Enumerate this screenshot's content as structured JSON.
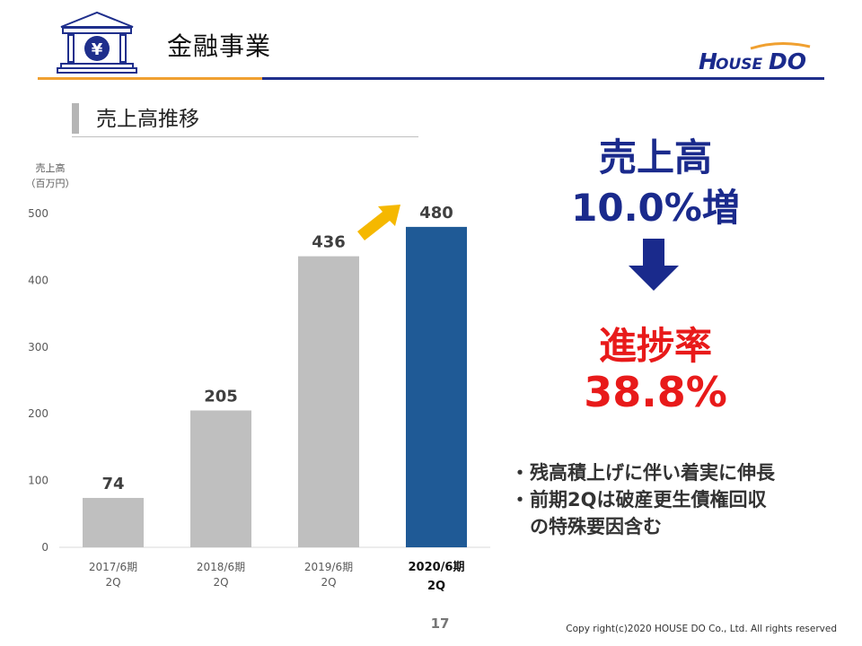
{
  "header": {
    "title": "金融事業",
    "icon": "bank-yen-icon",
    "logo_text": "HOUSEDO",
    "colors": {
      "orange_rule": "#f0a030",
      "navy_rule": "#1f2f8c",
      "logo_navy": "#1a2a8c",
      "logo_orange": "#f0a030"
    }
  },
  "section": {
    "title": "売上高推移"
  },
  "chart_data": {
    "type": "bar",
    "y_axis_label_line1": "売上高",
    "y_axis_label_line2": "（百万円）",
    "ylim": [
      0,
      500
    ],
    "yticks": [
      0,
      100,
      200,
      300,
      400,
      500
    ],
    "categories": [
      {
        "line1": "2017/6期",
        "line2": "2Q"
      },
      {
        "line1": "2018/6期",
        "line2": "2Q"
      },
      {
        "line1": "2019/6期",
        "line2": "2Q"
      },
      {
        "line1": "2020/6期",
        "line2": "2Q"
      }
    ],
    "values": [
      74,
      205,
      436,
      480
    ],
    "data_labels": [
      "74",
      "205",
      "436",
      "480"
    ],
    "highlight_index": 3,
    "colors": {
      "bar": "#bfbfbf",
      "highlight": "#1f5a96",
      "arrow": "#f5b800"
    },
    "grid": false
  },
  "kpi": {
    "label": "売上高",
    "value": "10.0%増",
    "progress_label": "進捗率",
    "progress_value": "38.8%",
    "colors": {
      "kpi": "#1a2a8c",
      "progress": "#e81a1a",
      "arrow": "#1a2a8c"
    }
  },
  "notes": [
    {
      "bullet": "・",
      "text": "残高積上げに伴い着実に伸長"
    },
    {
      "bullet": "・",
      "text": "前期2Qは破産更生債権回収"
    },
    {
      "bullet": "",
      "text": "の特殊要因含む"
    }
  ],
  "footer": {
    "page_number": "17",
    "copyright": "Copy right(c)2020  HOUSE DO Co., Ltd.  All rights reserved"
  }
}
